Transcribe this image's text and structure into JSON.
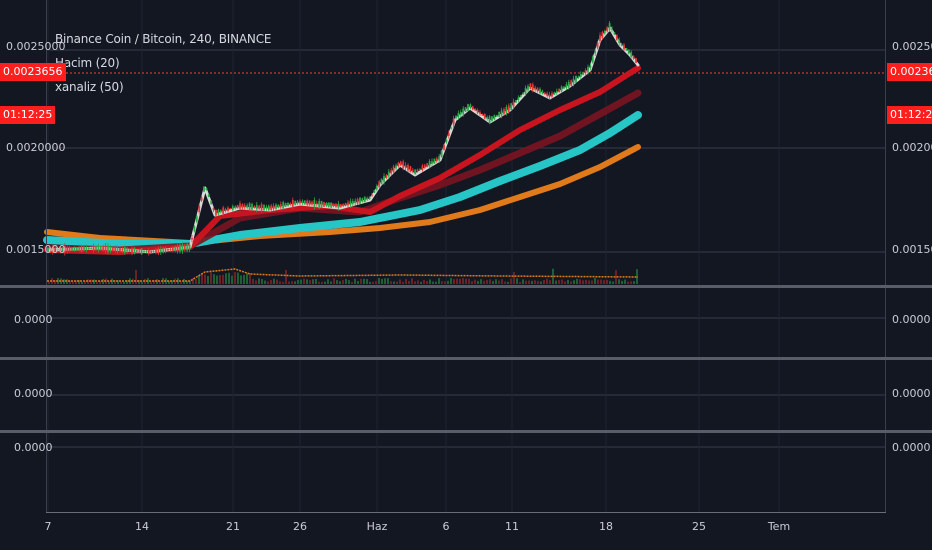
{
  "header": {
    "symbol_line": "Binance Coin / Bitcoin, 240, BINANCE",
    "indicator_volume": "Hacim (20)",
    "indicator_custom": "xanaliz (50)"
  },
  "price_axis": {
    "ticks": [
      "0.0025000",
      "0.0020000",
      "0.0015000"
    ],
    "current_price": "0.0023656",
    "countdown": "01:12:25"
  },
  "sub_panes": [
    {
      "value": "0.0000"
    },
    {
      "value": "0.0000"
    },
    {
      "value": "0.0000"
    }
  ],
  "time_axis": {
    "labels": [
      "7",
      "14",
      "21",
      "26",
      "Haz",
      "6",
      "11",
      "18",
      "25",
      "Tem"
    ]
  },
  "colors": {
    "background": "#131722",
    "price_line": "#ff3b3b",
    "badge": "#ff1e1e",
    "ma_teal": "#26c6c6",
    "ma_orange": "#e07a1a",
    "ma_red": "#c8141e",
    "ma_darkred": "#7a1420",
    "ma_white": "#d8d8d8",
    "candle_up": "#2ea84a",
    "candle_down": "#e53935"
  }
}
